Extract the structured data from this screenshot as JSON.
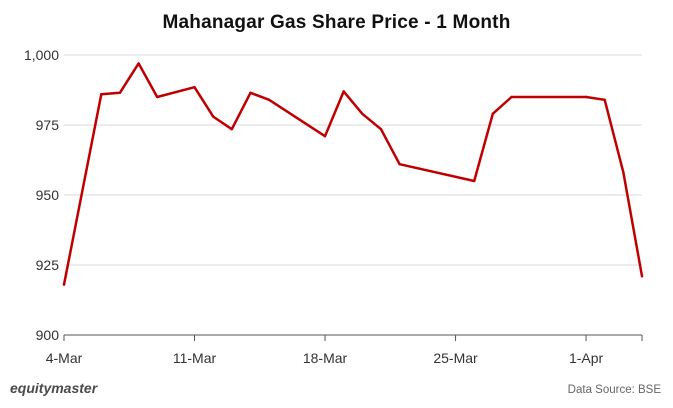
{
  "branding": {
    "logo_text": "equitymaster",
    "source": "Data Source: BSE"
  },
  "chart_data": {
    "type": "line",
    "title": "Mahanagar Gas Share Price - 1 Month",
    "xlabel": "",
    "ylabel": "",
    "ylim": [
      900,
      1000
    ],
    "yticks": [
      900,
      925,
      950,
      975,
      1000
    ],
    "ytick_labels": [
      "900",
      "925",
      "950",
      "975",
      "1,000"
    ],
    "xlim": [
      "2024-03-04",
      "2024-04-04"
    ],
    "xticks": [
      "2024-03-04",
      "2024-03-11",
      "2024-03-18",
      "2024-03-25",
      "2024-04-01"
    ],
    "xtick_labels": [
      "4-Mar",
      "11-Mar",
      "18-Mar",
      "25-Mar",
      "1-Apr"
    ],
    "grid": "horizontal",
    "line_color": "#c00000",
    "series": [
      {
        "x": [
          "2024-03-04",
          "2024-03-06",
          "2024-03-07",
          "2024-03-08",
          "2024-03-09",
          "2024-03-11",
          "2024-03-12",
          "2024-03-13",
          "2024-03-14",
          "2024-03-15",
          "2024-03-18",
          "2024-03-19",
          "2024-03-20",
          "2024-03-21",
          "2024-03-22",
          "2024-03-26",
          "2024-03-27",
          "2024-03-28",
          "2024-04-01",
          "2024-04-02",
          "2024-04-03",
          "2024-04-04"
        ],
        "values": [
          918,
          986,
          986.5,
          997,
          985,
          988.5,
          978,
          973.5,
          986.5,
          984,
          971,
          987,
          979,
          973.5,
          961,
          955,
          979,
          985,
          985,
          984,
          958,
          921
        ]
      }
    ]
  }
}
